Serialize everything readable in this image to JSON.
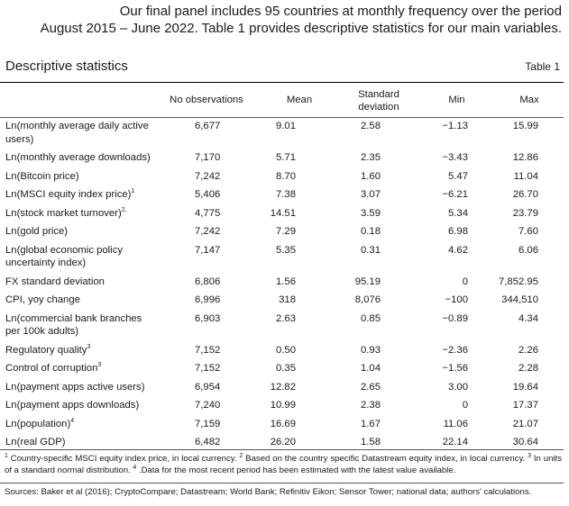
{
  "intro": {
    "line1": "Our final panel includes 95 countries at monthly frequency over the period",
    "line2": "August 2015 – June 2022. Table 1 provides descriptive statistics for our main variables."
  },
  "table": {
    "title": "Descriptive statistics",
    "number": "Table 1",
    "headers": {
      "obs": "No observations",
      "mean": "Mean",
      "sd": "Standard deviation",
      "min": "Min",
      "max": "Max"
    },
    "rows": [
      {
        "label": "Ln(monthly average daily active users)",
        "sup": "",
        "obs": "6,677",
        "mean": "9.01",
        "sd": "2.58",
        "min": "−1.13",
        "max": "15.99"
      },
      {
        "label": "Ln(monthly average downloads)",
        "sup": "",
        "obs": "7,170",
        "mean": "5.71",
        "sd": "2.35",
        "min": "−3.43",
        "max": "12.86"
      },
      {
        "label": "Ln(Bitcoin price)",
        "sup": "",
        "obs": "7,242",
        "mean": "8.70",
        "sd": "1.60",
        "min": "5.47",
        "max": "11.04"
      },
      {
        "label": "Ln(MSCI equity index price)",
        "sup": "1",
        "obs": "5,406",
        "mean": "7.38",
        "sd": "3.07",
        "min": "−6.21",
        "max": "26.70"
      },
      {
        "label": "Ln(stock market turnover)",
        "sup": "2,",
        "obs": "4,775",
        "mean": "14.51",
        "sd": "3.59",
        "min": "5.34",
        "max": "23.79"
      },
      {
        "label": "Ln(gold price)",
        "sup": "",
        "obs": "7,242",
        "mean": "7.29",
        "sd": "0.18",
        "min": "6.98",
        "max": "7.60"
      },
      {
        "label": "Ln(global economic policy uncertainty index)",
        "sup": "",
        "obs": "7,147",
        "mean": "5.35",
        "sd": "0.31",
        "min": "4.62",
        "max": "6.06"
      },
      {
        "label": "FX standard deviation",
        "sup": "",
        "obs": "6,806",
        "mean": "1.56",
        "sd": "95.19",
        "min": "0",
        "max": "7,852.95"
      },
      {
        "label": "CPI, yoy change",
        "sup": "",
        "obs": "6,996",
        "mean": "318",
        "sd": "8,076",
        "min": "−100",
        "max": "344,510"
      },
      {
        "label": "Ln(commercial bank branches per 100k adults)",
        "sup": "",
        "obs": "6,903",
        "mean": "2.63",
        "sd": "0.85",
        "min": "−0.89",
        "max": "4.34"
      },
      {
        "label": "Regulatory quality",
        "sup": "3",
        "obs": "7,152",
        "mean": "0.50",
        "sd": "0.93",
        "min": "−2.36",
        "max": "2.26"
      },
      {
        "label": "Control of corruption",
        "sup": "3",
        "obs": "7,152",
        "mean": "0.35",
        "sd": "1.04",
        "min": "−1.56",
        "max": "2.28"
      },
      {
        "label": "Ln(payment apps active users)",
        "sup": "",
        "obs": "6,954",
        "mean": "12.82",
        "sd": "2.65",
        "min": "3.00",
        "max": "19.64"
      },
      {
        "label": "Ln(payment apps downloads)",
        "sup": "",
        "obs": "7,240",
        "mean": "10.99",
        "sd": "2.38",
        "min": "0",
        "max": "17.37"
      },
      {
        "label": "Ln(population)",
        "sup": "4",
        "obs": "7,159",
        "mean": "16.69",
        "sd": "1.67",
        "min": "11.06",
        "max": "21.07"
      },
      {
        "label": "Ln(real GDP)",
        "sup": "",
        "obs": "6,482",
        "mean": "26.20",
        "sd": "1.58",
        "min": "22.14",
        "max": "30.64"
      }
    ]
  },
  "footnotes": {
    "n1_mark": "1",
    "n1_text": " Country-specific MSCI equity index price, in local currency. ",
    "n2_mark": "2",
    "n2_text": " Based on the country specific Datastream equity index, in local currency. ",
    "n3_mark": "3",
    "n3_text": " In units of a standard normal distribution. ",
    "n4_mark": "4",
    "n4_text": " .Data for the most recent period has been estimated with the latest value available."
  },
  "sources": "Sources: Baker et al (2016); CryptoCompare; Datastream; World Bank; Refinitiv Eikon; Sensor Tower; national data; authors' calculations."
}
